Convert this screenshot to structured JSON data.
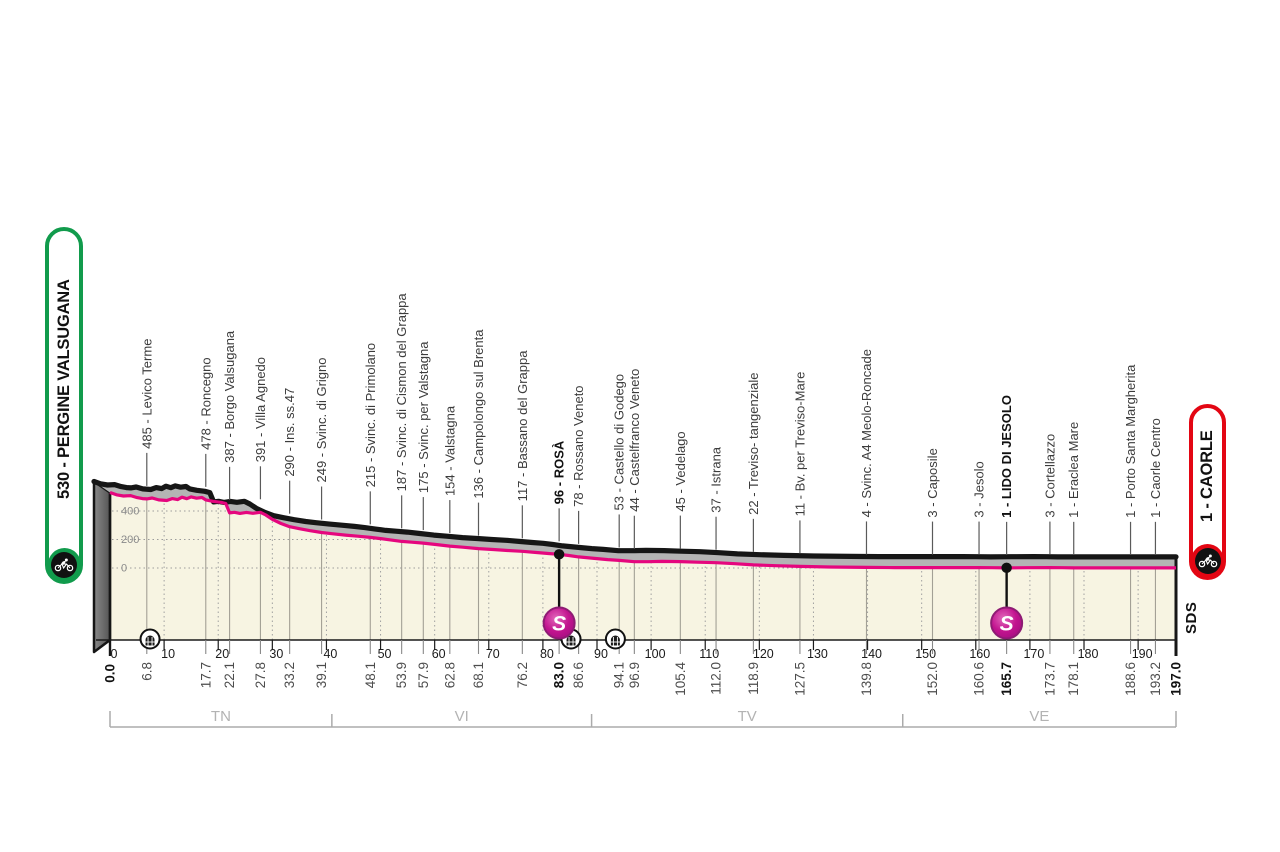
{
  "labels": {
    "start": "530 - PERGINE VALSUGANA",
    "finish": "1 - CAORLE",
    "sds": "SDS"
  },
  "colors": {
    "pink": "#e5067e",
    "cream": "#f7f4e2",
    "band_gray": "#b4b4b4",
    "cap_gray": "#6b6b6b",
    "outline": "#161616",
    "start_green": "#119b4c",
    "finish_red": "#e30613",
    "sprint_fill": "#c2148f",
    "sprint_ring": "#8e1b74",
    "region_gray": "#ababab",
    "grid_gray": "#a3a095",
    "label_gray": "#3c3c3c"
  },
  "chart_data": {
    "type": "area",
    "title": "Stage altimetry profile Pergine Valsugana - Caorle",
    "x_unit": "km",
    "y_unit": "m",
    "total_km": 197.0,
    "ylim": [
      0,
      600
    ],
    "y_gridlines": [
      400,
      200,
      0
    ],
    "x_ticks": [
      0,
      10,
      20,
      30,
      40,
      50,
      60,
      70,
      80,
      90,
      100,
      110,
      120,
      130,
      140,
      150,
      160,
      170,
      180,
      190
    ],
    "start": {
      "elevation": 530,
      "name": "PERGINE VALSUGANA"
    },
    "finish": {
      "elevation": 1,
      "name": "CAORLE"
    },
    "waypoints": [
      {
        "km": 0.0,
        "elev": 530,
        "name": null,
        "bold": true
      },
      {
        "km": 6.8,
        "elev": 485,
        "name": "485 - Levico Terme"
      },
      {
        "km": 17.7,
        "elev": 478,
        "name": "478 - Roncegno"
      },
      {
        "km": 22.1,
        "elev": 387,
        "name": "387 - Borgo Valsugana"
      },
      {
        "km": 27.8,
        "elev": 391,
        "name": "391 - Villa Agnedo"
      },
      {
        "km": 33.2,
        "elev": 290,
        "name": "290 - Ins. ss.47"
      },
      {
        "km": 39.1,
        "elev": 249,
        "name": "249 - Svinc. di Grigno"
      },
      {
        "km": 48.1,
        "elev": 215,
        "name": "215 - Svinc. di Primolano"
      },
      {
        "km": 53.9,
        "elev": 187,
        "name": "187 - Svinc. di Cismon del Grappa"
      },
      {
        "km": 57.9,
        "elev": 175,
        "name": "175 - Svinc. per Valstagna"
      },
      {
        "km": 62.8,
        "elev": 154,
        "name": "154 - Valstagna"
      },
      {
        "km": 68.1,
        "elev": 136,
        "name": "136 - Campolongo sul Brenta"
      },
      {
        "km": 76.2,
        "elev": 117,
        "name": "117 - Bassano del Grappa"
      },
      {
        "km": 83.0,
        "elev": 96,
        "name": "96 - ROSÀ",
        "bold": true,
        "sprint": true
      },
      {
        "km": 86.6,
        "elev": 78,
        "name": "78 - Rossano Veneto"
      },
      {
        "km": 94.1,
        "elev": 53,
        "name": "53 - Castello di Godego"
      },
      {
        "km": 96.9,
        "elev": 44,
        "name": "44 - Castelfranco Veneto"
      },
      {
        "km": 105.4,
        "elev": 45,
        "name": "45 - Vedelago"
      },
      {
        "km": 112.0,
        "elev": 37,
        "name": "37 - Istrana"
      },
      {
        "km": 118.9,
        "elev": 22,
        "name": "22 - Treviso- tangenziale"
      },
      {
        "km": 127.5,
        "elev": 11,
        "name": "11 - Bv. per Treviso-Mare"
      },
      {
        "km": 139.8,
        "elev": 4,
        "name": "4 - Svinc. A4  Meolo-Roncade"
      },
      {
        "km": 152.0,
        "elev": 3,
        "name": "3 - Caposile"
      },
      {
        "km": 160.6,
        "elev": 3,
        "name": "3 - Jesolo"
      },
      {
        "km": 165.7,
        "elev": 1,
        "name": "1 - LIDO DI JESOLO",
        "bold": true,
        "sprint": true
      },
      {
        "km": 173.7,
        "elev": 3,
        "name": "3 - Cortellazzo"
      },
      {
        "km": 178.1,
        "elev": 1,
        "name": "1 - Eraclea Mare"
      },
      {
        "km": 188.6,
        "elev": 1,
        "name": "1 - Porto Santa Margherita"
      },
      {
        "km": 193.2,
        "elev": 1,
        "name": "1 - Caorle Centro"
      },
      {
        "km": 197.0,
        "elev": 1,
        "name": null,
        "bold": true
      }
    ],
    "sprints_km": [
      83.0,
      165.7
    ],
    "tunnels_km": [
      7.4,
      85.2,
      93.4
    ],
    "regions": [
      {
        "label": "TN",
        "from_km": 0,
        "to_km": 41
      },
      {
        "label": "VI",
        "from_km": 41,
        "to_km": 89
      },
      {
        "label": "TV",
        "from_km": 89,
        "to_km": 146.5
      },
      {
        "label": "VE",
        "from_km": 146.5,
        "to_km": 197
      }
    ],
    "profile": [
      [
        0,
        530
      ],
      [
        1.2,
        514
      ],
      [
        2.5,
        505
      ],
      [
        3.8,
        508
      ],
      [
        5,
        494
      ],
      [
        6,
        487
      ],
      [
        6.8,
        485
      ],
      [
        7.8,
        491
      ],
      [
        9,
        478
      ],
      [
        10.5,
        474
      ],
      [
        11.5,
        487
      ],
      [
        12.5,
        480
      ],
      [
        13.3,
        497
      ],
      [
        14.2,
        486
      ],
      [
        15,
        499
      ],
      [
        16,
        490
      ],
      [
        17,
        495
      ],
      [
        17.7,
        478
      ],
      [
        19,
        468
      ],
      [
        20.5,
        461
      ],
      [
        21.4,
        452
      ],
      [
        22.1,
        387
      ],
      [
        23,
        391
      ],
      [
        24,
        383
      ],
      [
        25.2,
        390
      ],
      [
        26.4,
        384
      ],
      [
        27.8,
        391
      ],
      [
        28.8,
        372
      ],
      [
        30,
        342
      ],
      [
        31.6,
        312
      ],
      [
        33.2,
        290
      ],
      [
        35,
        276
      ],
      [
        37,
        262
      ],
      [
        39.1,
        249
      ],
      [
        41,
        241
      ],
      [
        43.5,
        231
      ],
      [
        45.8,
        223
      ],
      [
        48.1,
        215
      ],
      [
        50,
        206
      ],
      [
        52,
        196
      ],
      [
        53.9,
        187
      ],
      [
        55.8,
        181
      ],
      [
        57.9,
        175
      ],
      [
        60.2,
        165
      ],
      [
        62.8,
        154
      ],
      [
        65.2,
        146
      ],
      [
        68.1,
        136
      ],
      [
        70.8,
        130
      ],
      [
        73.5,
        123
      ],
      [
        76.2,
        117
      ],
      [
        78.8,
        109
      ],
      [
        81,
        102
      ],
      [
        83,
        96
      ],
      [
        84.8,
        88
      ],
      [
        86.6,
        78
      ],
      [
        90,
        66
      ],
      [
        92,
        59
      ],
      [
        94.1,
        53
      ],
      [
        96.9,
        44
      ],
      [
        99.5,
        44
      ],
      [
        102,
        46
      ],
      [
        105.4,
        45
      ],
      [
        108.5,
        41
      ],
      [
        112,
        37
      ],
      [
        115.5,
        30
      ],
      [
        118.9,
        22
      ],
      [
        123,
        16
      ],
      [
        127.5,
        11
      ],
      [
        133,
        7
      ],
      [
        139.8,
        4
      ],
      [
        145,
        3
      ],
      [
        152,
        3
      ],
      [
        157,
        3
      ],
      [
        160.6,
        3
      ],
      [
        163,
        2
      ],
      [
        165.7,
        1
      ],
      [
        169.5,
        2
      ],
      [
        173.7,
        3
      ],
      [
        176,
        2
      ],
      [
        178.1,
        1
      ],
      [
        183,
        1
      ],
      [
        188.6,
        1
      ],
      [
        193.2,
        1
      ],
      [
        197,
        1
      ]
    ]
  }
}
